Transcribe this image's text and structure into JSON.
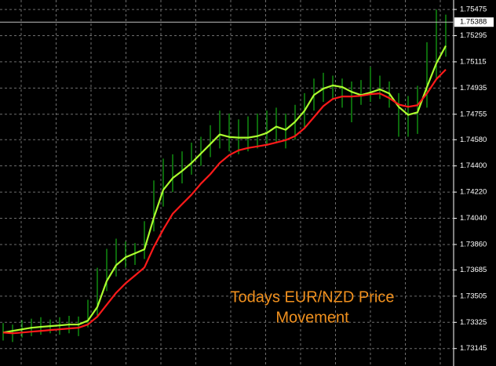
{
  "chart_data": {
    "type": "ohlc",
    "annotation": [
      "Todays EUR/NZD Price",
      "Movement"
    ],
    "annotation_color": "#f0901e",
    "background": "#000000",
    "grid": true,
    "grid_color": "#6e6e6e",
    "axis_color": "#ffffff",
    "ylim": [
      1.73025,
      1.7554
    ],
    "yticks": [
      1.75475,
      1.75295,
      1.75115,
      1.74935,
      1.74755,
      {
        "value": 1.7458,
        "label": "1.74580"
      },
      {
        "value": 1.744,
        "label": "1.74400"
      },
      {
        "value": 1.7422,
        "label": "1.74220"
      },
      {
        "value": 1.7404,
        "label": "1.74040"
      },
      {
        "value": 1.7386,
        "label": "1.73860"
      },
      1.73685,
      1.73505,
      1.73325,
      1.73145
    ],
    "last_price": 1.75388,
    "categories": [
      null,
      null,
      null,
      null,
      null,
      null,
      null,
      null,
      null,
      null,
      null,
      null,
      null,
      null,
      null,
      null,
      null,
      null,
      null,
      null,
      null,
      null,
      null,
      null,
      null,
      null,
      null,
      null,
      null,
      null,
      null,
      null,
      null,
      null,
      null,
      null,
      null,
      null,
      null,
      null,
      null,
      null,
      null,
      null,
      null,
      null,
      null,
      null
    ],
    "bars": {
      "color": "#19d219",
      "high": [
        1.7332,
        1.7331,
        1.7334,
        1.7335,
        1.7336,
        1.73345,
        1.7336,
        1.7337,
        1.73365,
        1.7348,
        1.737,
        1.7383,
        1.739,
        1.7388,
        1.7387,
        1.7402,
        1.743,
        1.7445,
        1.7448,
        1.745,
        1.7456,
        1.746,
        1.7468,
        1.7478,
        1.7476,
        1.7472,
        1.7474,
        1.7476,
        1.7478,
        1.748,
        1.7476,
        1.7482,
        1.749,
        1.75,
        1.7504,
        1.7502,
        1.75,
        1.7498,
        1.7499,
        1.7508,
        1.7502,
        1.7498,
        1.749,
        1.7488,
        1.7495,
        1.7525,
        1.75475,
        1.7544
      ],
      "low": [
        1.732,
        1.7319,
        1.7322,
        1.7323,
        1.7324,
        1.7325,
        1.7324,
        1.7325,
        1.7323,
        1.7329,
        1.7336,
        1.7354,
        1.7364,
        1.737,
        1.7372,
        1.7376,
        1.7395,
        1.7412,
        1.7422,
        1.7428,
        1.7434,
        1.744,
        1.7446,
        1.7452,
        1.745,
        1.7448,
        1.745,
        1.7452,
        1.7454,
        1.7456,
        1.7452,
        1.7458,
        1.7466,
        1.7478,
        1.7484,
        1.7486,
        1.748,
        1.747,
        1.7482,
        1.7484,
        1.7486,
        1.748,
        1.746,
        1.746,
        1.7462,
        1.748,
        1.75,
        1.7515
      ]
    },
    "series": [
      {
        "color": "#adff2f",
        "values": [
          1.73255,
          1.73266,
          1.73277,
          1.73288,
          1.73294,
          1.73299,
          1.73304,
          1.7331,
          1.7331,
          1.73337,
          1.7343,
          1.73609,
          1.73718,
          1.73772,
          1.73799,
          1.73827,
          1.74044,
          1.74235,
          1.74316,
          1.74365,
          1.7442,
          1.74485,
          1.7455,
          1.74616,
          1.74599,
          1.74594,
          1.74594,
          1.74605,
          1.74626,
          1.7467,
          1.74648,
          1.74703,
          1.74779,
          1.74887,
          1.74931,
          1.74953,
          1.74942,
          1.74909,
          1.74887,
          1.74904,
          1.74926,
          1.74898,
          1.74806,
          1.74751,
          1.74768,
          1.74942,
          1.75105,
          1.75225
        ]
      },
      {
        "color": "#ff1a1a",
        "values": [
          1.73255,
          1.7325,
          1.73255,
          1.73261,
          1.73266,
          1.73272,
          1.73277,
          1.73283,
          1.73288,
          1.7331,
          1.73364,
          1.73446,
          1.73528,
          1.73593,
          1.73647,
          1.73702,
          1.73843,
          1.73963,
          1.74071,
          1.74137,
          1.74202,
          1.74278,
          1.74343,
          1.7442,
          1.74474,
          1.74507,
          1.74523,
          1.74534,
          1.74545,
          1.74561,
          1.74577,
          1.74605,
          1.74659,
          1.74735,
          1.74811,
          1.7486,
          1.74877,
          1.74877,
          1.74882,
          1.74893,
          1.74898,
          1.74866,
          1.74822,
          1.74806,
          1.74817,
          1.74898,
          1.74996,
          1.75062
        ]
      }
    ]
  }
}
